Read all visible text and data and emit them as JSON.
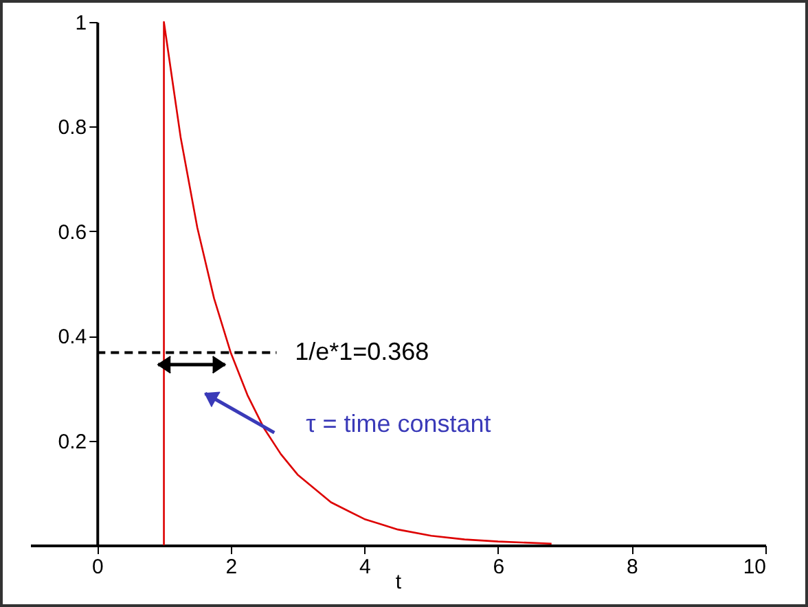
{
  "chart_data": {
    "type": "line",
    "xlabel": "t",
    "x": [
      1,
      1,
      1.25,
      1.5,
      1.75,
      2,
      2.25,
      2.5,
      2.75,
      3,
      3.5,
      4,
      4.5,
      5,
      5.5,
      6,
      6.8
    ],
    "series": [
      {
        "color": "#dd0000",
        "values": [
          0,
          1,
          0.78,
          0.607,
          0.472,
          0.368,
          0.287,
          0.223,
          0.174,
          0.135,
          0.082,
          0.05,
          0.03,
          0.018,
          0.011,
          0.007,
          0.003
        ]
      }
    ],
    "xlim": [
      -1,
      10
    ],
    "ylim": [
      0,
      1
    ],
    "xticks": [
      0,
      2,
      4,
      6,
      8,
      10
    ],
    "yticks": [
      0.2,
      0.4,
      0.6,
      0.8,
      1
    ],
    "ref_lines": [
      {
        "axis": "y",
        "value": 0.368,
        "label": "1/e*1=0.368",
        "color": "#000000",
        "line_style": "dashed"
      }
    ],
    "annotations": [
      "τ = time constant"
    ],
    "grid": false,
    "marker": "none",
    "line_style": "solid"
  }
}
